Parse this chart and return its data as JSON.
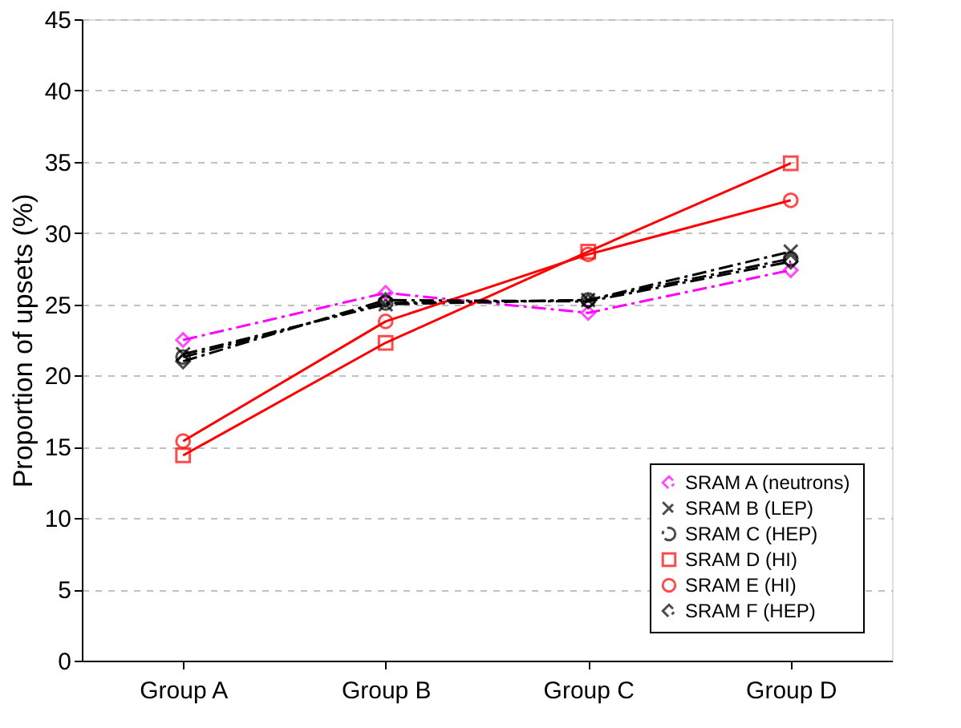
{
  "chart_data": {
    "type": "line",
    "ylabel": "Proportion of upsets (%)",
    "categories": [
      "Group A",
      "Group B",
      "Group C",
      "Group D"
    ],
    "ylim": [
      0,
      45
    ],
    "yticks": [
      0,
      5,
      10,
      15,
      20,
      25,
      30,
      35,
      40,
      45
    ],
    "grid": "y",
    "legend": "bottom right",
    "series": [
      {
        "name": "SRAM A (neutrons)",
        "color": "#ff00ff",
        "marker": "diamond",
        "line_style": "dashed",
        "values": [
          22.5,
          25.8,
          24.4,
          27.4
        ]
      },
      {
        "name": "SRAM B (LEP)",
        "color": "#000000",
        "marker": "cross",
        "line_style": "dashed",
        "values": [
          21.5,
          25.0,
          25.3,
          28.7
        ]
      },
      {
        "name": "SRAM C (HEP)",
        "color": "#000000",
        "marker": "circle",
        "line_style": "dashed",
        "values": [
          21.3,
          25.1,
          25.3,
          28.2
        ]
      },
      {
        "name": "SRAM D (HI)",
        "color": "#ff0000",
        "marker": "square",
        "line_style": "solid",
        "values": [
          14.4,
          22.3,
          28.7,
          34.9
        ]
      },
      {
        "name": "SRAM E (HI)",
        "color": "#ff0000",
        "marker": "circle",
        "line_style": "solid",
        "values": [
          15.4,
          23.8,
          28.5,
          32.3
        ]
      },
      {
        "name": "SRAM F (HEP)",
        "color": "#000000",
        "marker": "diamond",
        "line_style": "dashed",
        "values": [
          21.0,
          25.3,
          25.2,
          28.0
        ]
      }
    ]
  }
}
